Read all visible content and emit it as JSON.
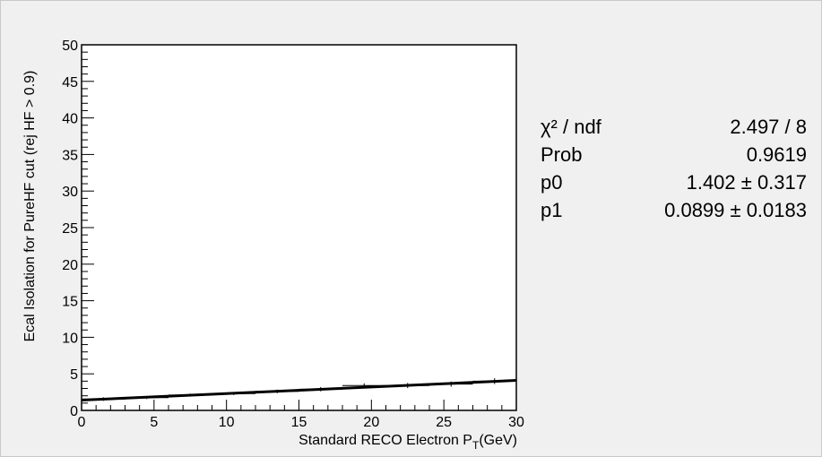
{
  "chart_data": {
    "type": "scatter",
    "xlabel": "Standard RECO Electron P",
    "xlabel_subscript": "T",
    "xlabel_suffix": "(GeV)",
    "ylabel": "Ecal Isolation for PureHF cut (rej HF > 0.9)",
    "xlim": [
      0,
      30
    ],
    "ylim": [
      0,
      50
    ],
    "x_ticks": [
      "0",
      "5",
      "10",
      "15",
      "20",
      "25",
      "30"
    ],
    "y_ticks": [
      "0",
      "5",
      "10",
      "15",
      "20",
      "25",
      "30",
      "35",
      "40",
      "45",
      "50"
    ],
    "grid": false,
    "points": [
      {
        "x": 1.5,
        "y": 1.55,
        "xerr": 1.5,
        "yerr": 0.25
      },
      {
        "x": 4.5,
        "y": 1.75,
        "xerr": 1.5,
        "yerr": 0.2
      },
      {
        "x": 7.5,
        "y": 2.1,
        "xerr": 1.5,
        "yerr": 0.2
      },
      {
        "x": 10.5,
        "y": 2.3,
        "xerr": 1.5,
        "yerr": 0.2
      },
      {
        "x": 13.5,
        "y": 2.6,
        "xerr": 1.5,
        "yerr": 0.25
      },
      {
        "x": 16.5,
        "y": 2.9,
        "xerr": 1.5,
        "yerr": 0.3
      },
      {
        "x": 19.5,
        "y": 3.4,
        "xerr": 1.5,
        "yerr": 0.3
      },
      {
        "x": 22.5,
        "y": 3.4,
        "xerr": 1.5,
        "yerr": 0.35
      },
      {
        "x": 25.5,
        "y": 3.6,
        "xerr": 1.5,
        "yerr": 0.35
      },
      {
        "x": 28.5,
        "y": 4.0,
        "xerr": 1.5,
        "yerr": 0.4
      }
    ],
    "fit": {
      "p0": 1.402,
      "p1": 0.0899,
      "x_range": [
        0,
        30
      ]
    }
  },
  "stats": {
    "rows": [
      {
        "label": "χ² / ndf",
        "value": "2.497 / 8"
      },
      {
        "label": "Prob",
        "value": "0.9619"
      },
      {
        "label": "p0",
        "value": "1.402 ± 0.317"
      },
      {
        "label": "p1",
        "value": "0.0899 ± 0.0183"
      }
    ]
  }
}
